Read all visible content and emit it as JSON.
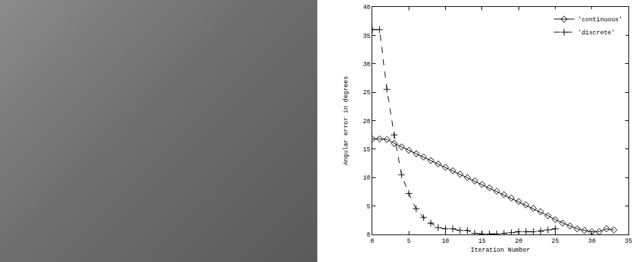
{
  "chart_data": {
    "type": "line",
    "x_label": "Iteration Number",
    "y_label": "Angular error in degrees",
    "xlim": [
      0,
      35
    ],
    "xticks": [
      0,
      5,
      10,
      15,
      20,
      25,
      30,
      35
    ],
    "ylim": [
      0,
      40
    ],
    "yticks": [
      0,
      5,
      10,
      15,
      20,
      25,
      30,
      35,
      40
    ],
    "grid": false,
    "legend": "upper right",
    "series": [
      {
        "name": "'continuous'",
        "color": "#000000",
        "marker": "diamond",
        "line_style": "solid",
        "x": [
          0,
          1,
          2,
          3,
          4,
          5,
          6,
          7,
          8,
          9,
          10,
          11,
          12,
          13,
          14,
          15,
          16,
          17,
          18,
          19,
          20,
          21,
          22,
          23,
          24,
          25,
          26,
          27,
          28,
          29,
          30,
          31,
          32,
          33
        ],
        "values": [
          16.8,
          16.8,
          16.7,
          16.0,
          15.4,
          14.8,
          14.2,
          13.6,
          13.0,
          12.4,
          11.8,
          11.2,
          10.6,
          10.0,
          9.4,
          8.8,
          8.2,
          7.6,
          7.0,
          6.4,
          5.8,
          5.2,
          4.6,
          4.0,
          3.3,
          2.6,
          2.0,
          1.5,
          1.0,
          0.7,
          0.5,
          0.5,
          1.0,
          0.8
        ]
      },
      {
        "name": "'discrete'",
        "color": "#000000",
        "marker": "plus",
        "line_style": "dashed",
        "x": [
          0,
          1,
          2,
          3,
          4,
          5,
          6,
          7,
          8,
          9,
          10,
          11,
          12,
          13,
          14,
          15,
          16,
          17,
          18,
          19,
          20,
          21,
          22,
          23,
          24,
          25
        ],
        "values": [
          36.0,
          36.0,
          25.5,
          17.5,
          10.5,
          7.2,
          4.5,
          3.0,
          2.0,
          1.2,
          1.0,
          1.0,
          0.7,
          0.7,
          0.2,
          0.1,
          0.1,
          0.1,
          0.2,
          0.3,
          0.5,
          0.5,
          0.5,
          0.6,
          0.8,
          1.0
        ]
      }
    ]
  }
}
